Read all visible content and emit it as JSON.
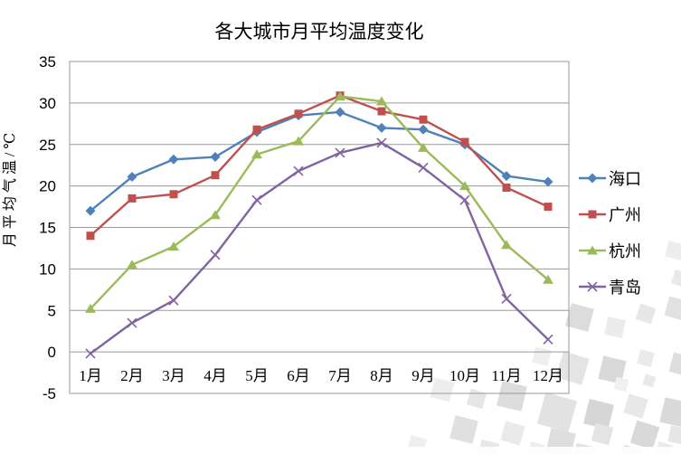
{
  "chart_data": {
    "type": "line",
    "title": "各大城市月平均温度变化",
    "ylabel": "月平均气温/℃",
    "xlabel": "",
    "categories": [
      "1月",
      "2月",
      "3月",
      "4月",
      "5月",
      "6月",
      "7月",
      "8月",
      "9月",
      "10月",
      "11月",
      "12月"
    ],
    "ylim": [
      -5,
      35
    ],
    "ytick_step": 5,
    "yticks": [
      -5,
      0,
      5,
      10,
      15,
      20,
      25,
      30,
      35
    ],
    "grid": "horizontal-only",
    "legend_position": "right",
    "axis_color": "#9a9a9a",
    "text_color": "#000000",
    "background_color": "#ffffff",
    "series": [
      {
        "id": "haikou",
        "name": "海口",
        "color": "#4F81BD",
        "marker": "diamond",
        "values": [
          17,
          21.1,
          23.2,
          23.5,
          26.5,
          28.5,
          28.9,
          27,
          26.8,
          25,
          21.2,
          20.5
        ]
      },
      {
        "id": "guangzhou",
        "name": "广州",
        "color": "#C0504D",
        "marker": "square",
        "values": [
          14,
          18.5,
          19,
          21.3,
          26.8,
          28.7,
          30.9,
          29,
          28,
          25.3,
          19.8,
          17.5
        ]
      },
      {
        "id": "hangzhou",
        "name": "杭州",
        "color": "#9BBB59",
        "marker": "triangle",
        "values": [
          5.2,
          10.5,
          12.7,
          16.5,
          23.8,
          25.4,
          30.8,
          30.2,
          24.6,
          20,
          12.9,
          8.7
        ]
      },
      {
        "id": "qingdao",
        "name": "青岛",
        "color": "#8064A2",
        "marker": "x",
        "values": [
          -0.2,
          3.5,
          6.2,
          11.7,
          18.3,
          21.8,
          24,
          25.2,
          22.2,
          18.3,
          6.4,
          1.5
        ]
      }
    ]
  }
}
